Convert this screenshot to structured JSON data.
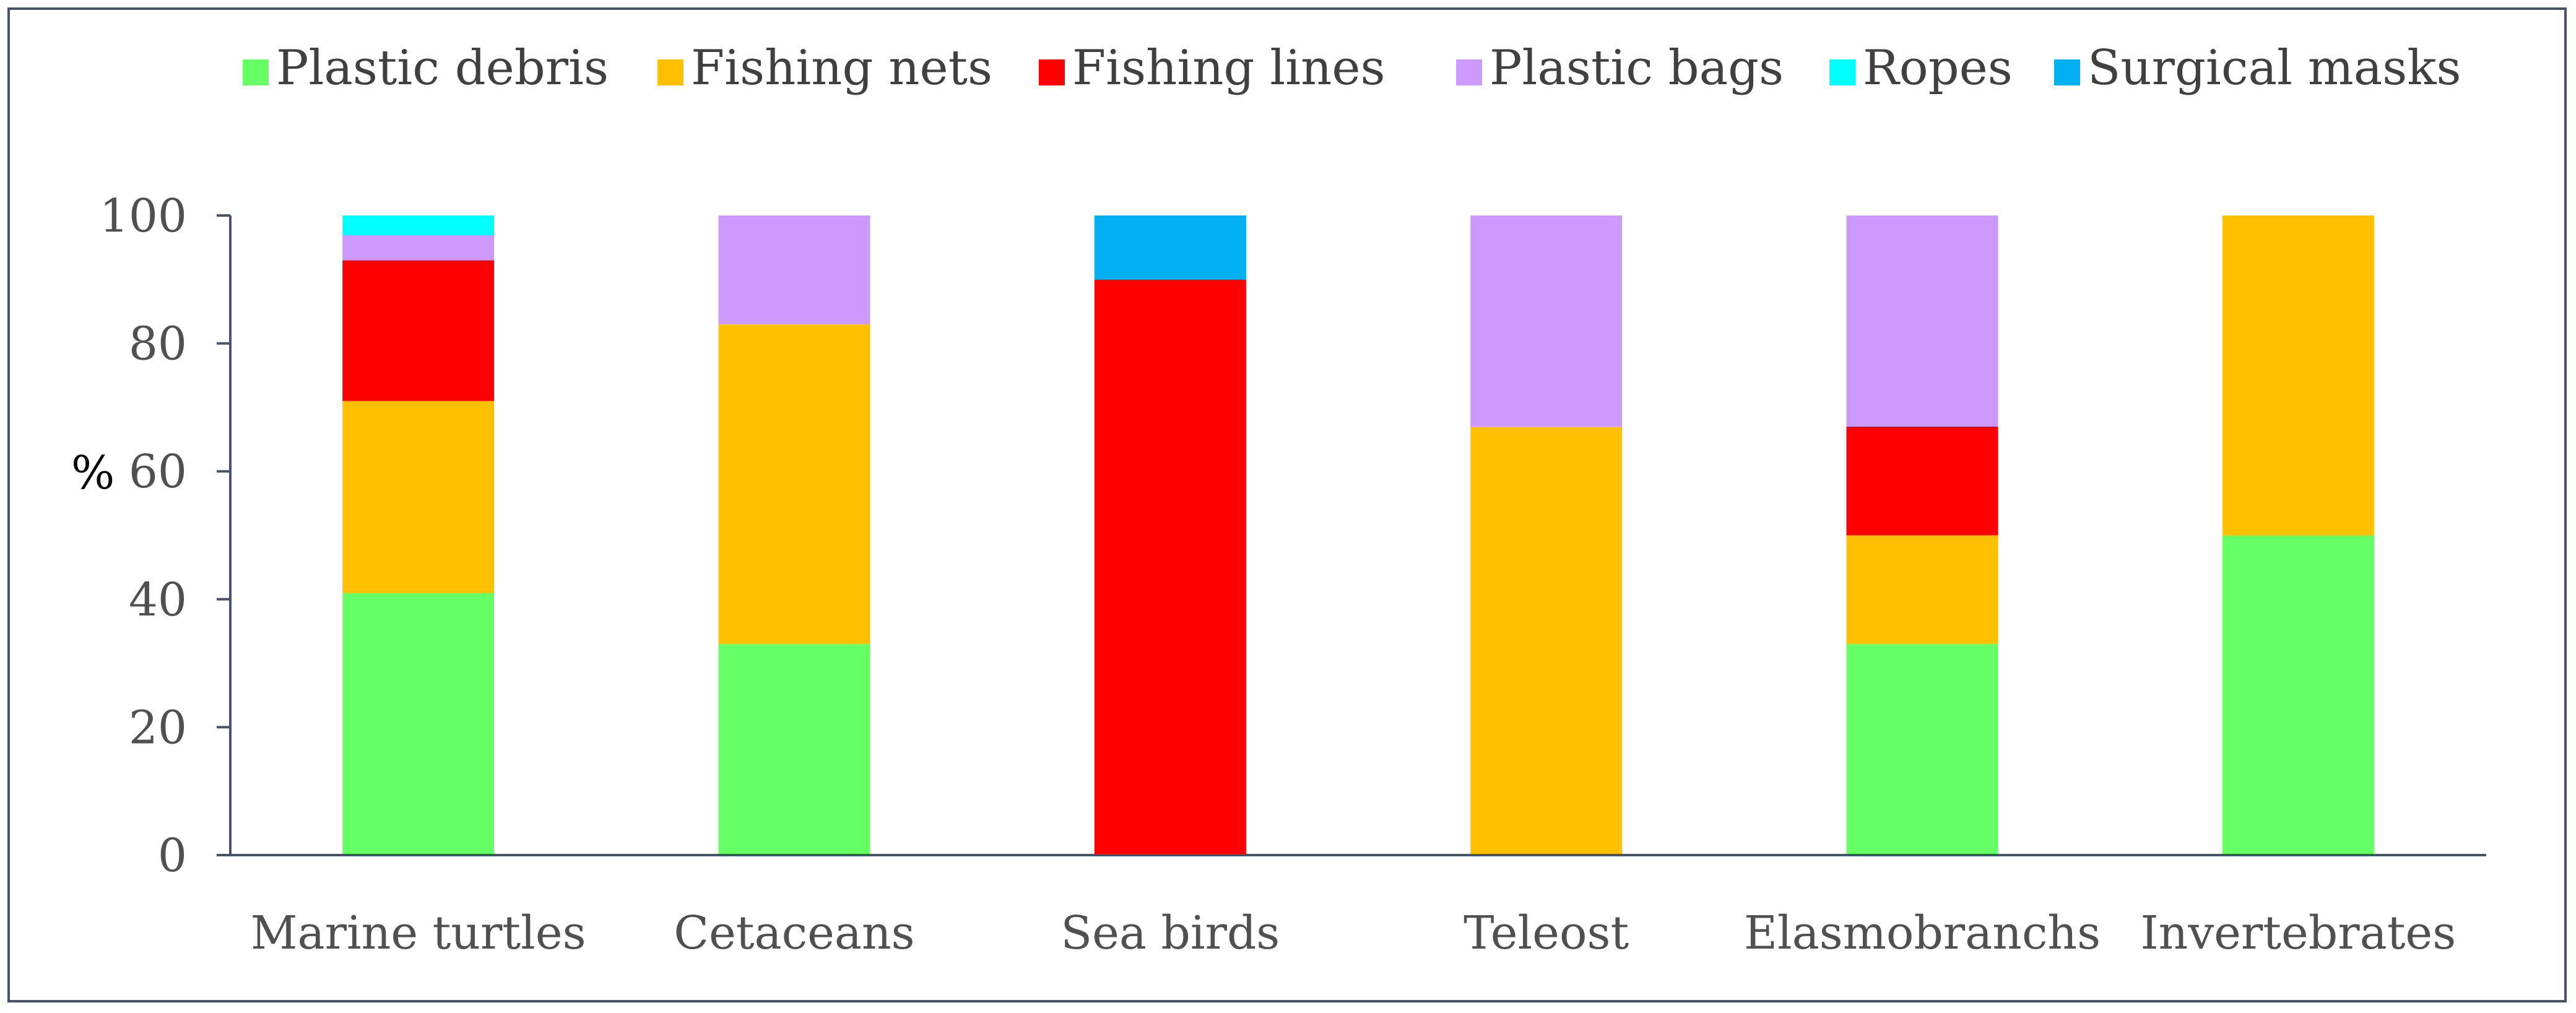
{
  "chart_data": {
    "type": "bar",
    "stacked": true,
    "title": "",
    "xlabel": "",
    "ylabel": "%",
    "ylim": [
      0,
      100
    ],
    "yticks": [
      0,
      20,
      40,
      60,
      80,
      100
    ],
    "grid": false,
    "legend_position": "top",
    "categories": [
      "Marine turtles",
      "Cetaceans",
      "Sea birds",
      "Teleost",
      "Elasmobranchs",
      "Invertebrates"
    ],
    "series": [
      {
        "name": "Plastic debris",
        "color": "#66FF66",
        "values": [
          41,
          33,
          0,
          0,
          33,
          50
        ]
      },
      {
        "name": "Fishing nets",
        "color": "#FFC000",
        "values": [
          30,
          50,
          0,
          67,
          17,
          50
        ]
      },
      {
        "name": "Fishing lines",
        "color": "#FF0000",
        "values": [
          22,
          0,
          90,
          0,
          17,
          0
        ]
      },
      {
        "name": "Plastic bags",
        "color": "#CC99FF",
        "values": [
          4,
          17,
          0,
          33,
          33,
          0
        ]
      },
      {
        "name": "Ropes",
        "color": "#00FFFF",
        "values": [
          3,
          0,
          0,
          0,
          0,
          0
        ]
      },
      {
        "name": "Surgical masks",
        "color": "#00B0F0",
        "values": [
          0,
          0,
          10,
          0,
          0,
          0
        ]
      }
    ]
  }
}
